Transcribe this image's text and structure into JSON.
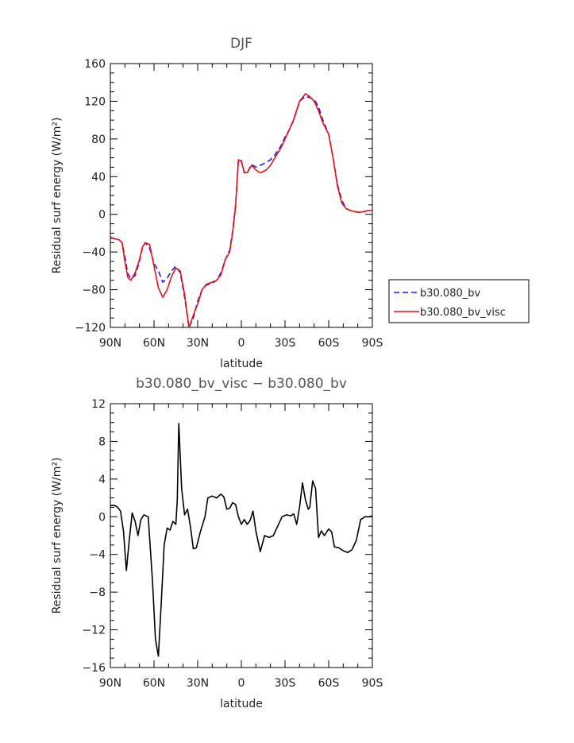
{
  "chart_data": [
    {
      "type": "line",
      "title": "DJF",
      "xlabel": "latitude",
      "ylabel": "Residual surf energy (W/m²)",
      "xlim": [
        90,
        -90
      ],
      "ylim": [
        -120,
        160
      ],
      "xticks": [
        {
          "v": 90,
          "label": "90N"
        },
        {
          "v": 60,
          "label": "60N"
        },
        {
          "v": 30,
          "label": "30N"
        },
        {
          "v": 0,
          "label": "0"
        },
        {
          "v": -30,
          "label": "30S"
        },
        {
          "v": -60,
          "label": "60S"
        },
        {
          "v": -90,
          "label": "90S"
        }
      ],
      "yticks": [
        -120,
        -80,
        -40,
        0,
        40,
        80,
        120,
        160
      ],
      "legend_position": "right",
      "series": [
        {
          "name": "b30.080_bv",
          "color": "#1a1aff",
          "dash": "dashed",
          "x": [
            90,
            87,
            84,
            82,
            80,
            78,
            76,
            73,
            70,
            68,
            66,
            63,
            60,
            57,
            54,
            51,
            48,
            45,
            42,
            39,
            36,
            33,
            30,
            27,
            24,
            20,
            17,
            14,
            11,
            8,
            6,
            4,
            2,
            0,
            -2,
            -4,
            -7,
            -10,
            -13,
            -17,
            -20,
            -23,
            -27,
            -30,
            -33,
            -36,
            -40,
            -44,
            -47,
            -50,
            -53,
            -56,
            -60,
            -63,
            -66,
            -69,
            -72,
            -75,
            -78,
            -81,
            -84,
            -87,
            -90
          ],
          "y": [
            -25,
            -26,
            -27,
            -30,
            -45,
            -63,
            -68,
            -65,
            -50,
            -36,
            -30,
            -36,
            -52,
            -60,
            -72,
            -68,
            -60,
            -55,
            -62,
            -88,
            -120,
            -110,
            -92,
            -80,
            -75,
            -73,
            -70,
            -62,
            -48,
            -38,
            -18,
            10,
            58,
            57,
            44,
            44,
            53,
            50,
            52,
            55,
            58,
            63,
            72,
            82,
            90,
            100,
            120,
            125,
            124,
            122,
            114,
            100,
            85,
            60,
            32,
            15,
            6,
            4,
            3,
            2,
            3,
            4,
            4
          ]
        },
        {
          "name": "b30.080_bv_visc",
          "color": "#ee1111",
          "dash": "solid",
          "x": [
            90,
            87,
            84,
            82,
            80,
            78,
            76,
            73,
            70,
            68,
            66,
            63,
            60,
            57,
            54,
            51,
            48,
            45,
            42,
            39,
            36,
            33,
            30,
            27,
            24,
            20,
            17,
            14,
            11,
            8,
            6,
            4,
            2,
            0,
            -2,
            -4,
            -7,
            -10,
            -13,
            -17,
            -20,
            -23,
            -27,
            -30,
            -33,
            -36,
            -40,
            -44,
            -47,
            -50,
            -53,
            -56,
            -60,
            -63,
            -66,
            -69,
            -72,
            -75,
            -78,
            -81,
            -84,
            -87,
            -90
          ],
          "y": [
            -24,
            -26,
            -27,
            -30,
            -50,
            -67,
            -70,
            -62,
            -48,
            -35,
            -30,
            -32,
            -55,
            -78,
            -88,
            -80,
            -66,
            -57,
            -60,
            -85,
            -120,
            -107,
            -95,
            -80,
            -74,
            -72,
            -70,
            -64,
            -48,
            -40,
            -20,
            8,
            58,
            56,
            45,
            44,
            52,
            47,
            44,
            47,
            52,
            60,
            70,
            80,
            90,
            101,
            120,
            128,
            125,
            120,
            110,
            97,
            85,
            60,
            30,
            12,
            6,
            4,
            3,
            2,
            3,
            4,
            4
          ]
        }
      ]
    },
    {
      "type": "line",
      "title": "b30.080_bv_visc − b30.080_bv",
      "xlabel": "latitude",
      "ylabel": "Residual surf energy (W/m²)",
      "xlim": [
        90,
        -90
      ],
      "ylim": [
        -16,
        12
      ],
      "xticks": [
        {
          "v": 90,
          "label": "90N"
        },
        {
          "v": 60,
          "label": "60N"
        },
        {
          "v": 30,
          "label": "30N"
        },
        {
          "v": 0,
          "label": "0"
        },
        {
          "v": -30,
          "label": "30S"
        },
        {
          "v": -60,
          "label": "60S"
        },
        {
          "v": -90,
          "label": "90S"
        }
      ],
      "yticks": [
        -16,
        -12,
        -8,
        -4,
        0,
        4,
        8,
        12
      ],
      "series": [
        {
          "color": "#000000",
          "x": [
            90,
            87,
            85,
            83,
            81,
            79,
            77,
            75,
            73,
            71,
            69,
            67,
            64,
            61,
            59,
            57,
            55,
            53,
            51,
            49,
            47,
            45,
            44,
            43,
            41,
            39,
            37,
            35,
            33,
            31,
            28,
            25,
            23,
            20,
            17,
            14,
            12,
            10,
            8,
            6,
            4,
            2,
            0,
            -2,
            -4,
            -6,
            -8,
            -10,
            -13,
            -16,
            -19,
            -22,
            -25,
            -28,
            -31,
            -34,
            -36,
            -38,
            -40,
            -42,
            -44,
            -46,
            -47,
            -49,
            -51,
            -53,
            -55,
            -57,
            -60,
            -62,
            -64,
            -67,
            -70,
            -73,
            -76,
            -79,
            -82,
            -85,
            -88,
            -90
          ],
          "y": [
            1.2,
            1.2,
            1.0,
            0.6,
            -1.5,
            -5.7,
            -2.5,
            0.4,
            -0.5,
            -2.0,
            -0.3,
            0.2,
            0.0,
            -7.0,
            -13.0,
            -14.8,
            -9.0,
            -3.0,
            -1.2,
            -1.4,
            -0.5,
            -0.8,
            1.8,
            9.9,
            3.0,
            0.2,
            0.8,
            -1.0,
            -3.4,
            -3.3,
            -1.5,
            0.0,
            2.0,
            2.2,
            2.0,
            2.4,
            2.1,
            0.8,
            0.9,
            1.5,
            1.3,
            0.0,
            -0.8,
            -0.3,
            -0.8,
            -0.4,
            0.6,
            -1.5,
            -3.7,
            -2.0,
            -2.2,
            -2.0,
            -1.0,
            0.0,
            0.2,
            0.1,
            0.3,
            -0.8,
            1.0,
            3.6,
            1.8,
            0.8,
            1.0,
            3.8,
            3.0,
            -2.2,
            -1.5,
            -2.0,
            -1.3,
            -1.6,
            -3.2,
            -3.3,
            -3.6,
            -3.8,
            -3.5,
            -2.5,
            -0.3,
            0.0,
            0.0,
            0.1
          ]
        }
      ]
    }
  ]
}
